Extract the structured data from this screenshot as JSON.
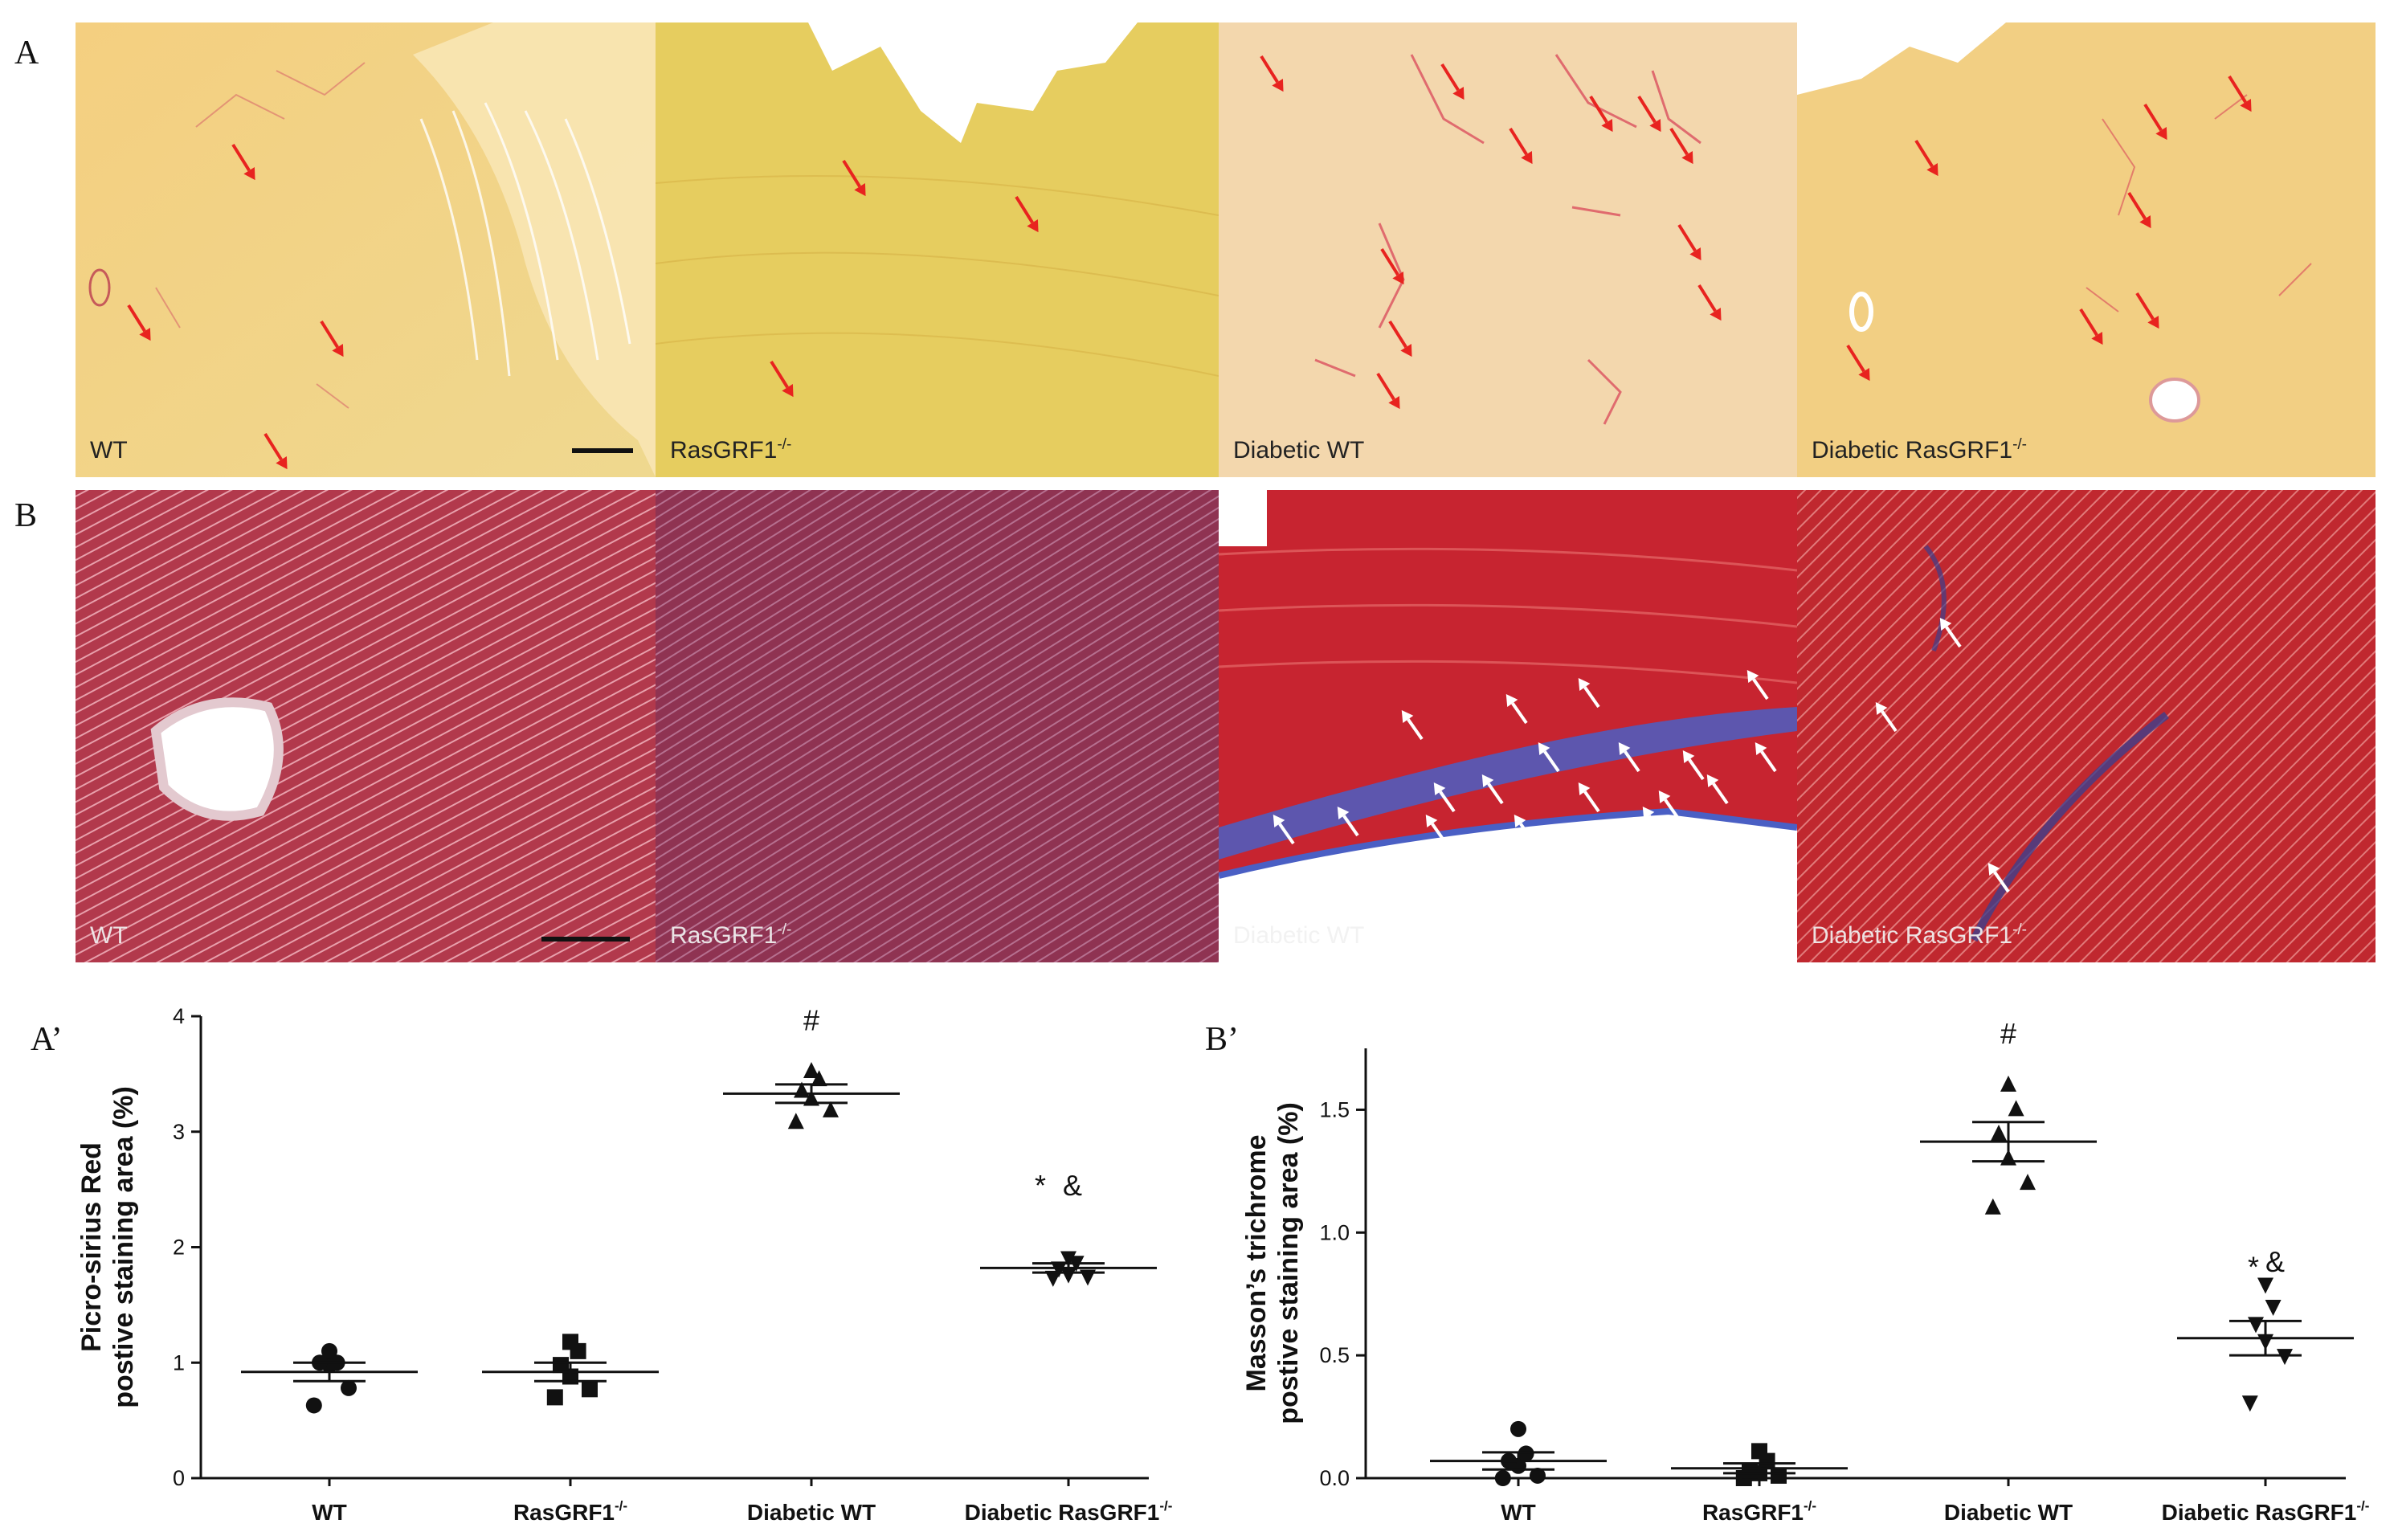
{
  "figure": {
    "panels": {
      "A": "A",
      "B": "B",
      "A_prime": "A’",
      "B_prime": "B’"
    }
  },
  "micrographs": {
    "row_a": [
      {
        "label": "WT",
        "sup": ""
      },
      {
        "label": "RasGRF1",
        "sup": "-/-"
      },
      {
        "label": "Diabetic WT",
        "sup": ""
      },
      {
        "label": "Diabetic RasGRF1",
        "sup": "-/-"
      }
    ],
    "row_b": [
      {
        "label": "WT",
        "sup": ""
      },
      {
        "label": "RasGRF1",
        "sup": "-/-"
      },
      {
        "label": "Diabetic WT",
        "sup": ""
      },
      {
        "label": "Diabetic RasGRF1",
        "sup": "-/-"
      }
    ],
    "colors": {
      "picro_bg": "#f2d27a",
      "picro_fiber": "#d9475a",
      "masson_bg": "#a8323f",
      "masson_collagen": "#4a5fc4",
      "arrow_red": "#e8231f",
      "arrow_white": "#ffffff"
    }
  },
  "chart_data": [
    {
      "type": "scatter",
      "panel": "A’",
      "ylabel_line1": "Picro-sirius Red",
      "ylabel_line2": "postive staining area (%)",
      "ylim": [
        0,
        4
      ],
      "yticks": [
        0,
        1,
        2,
        3,
        4
      ],
      "ytick_labels": [
        "0",
        "1",
        "2",
        "3",
        "4"
      ],
      "categories": [
        {
          "name": "WT",
          "sup": ""
        },
        {
          "name": "RasGRF1",
          "sup": "-/-"
        },
        {
          "name": "Diabetic WT",
          "sup": ""
        },
        {
          "name": "Diabetic RasGRF1",
          "sup": "-/-"
        }
      ],
      "markers": [
        "circle",
        "square",
        "triangle-up",
        "triangle-down"
      ],
      "points": [
        [
          0.63,
          0.78,
          0.98,
          1.0,
          1.0,
          1.1
        ],
        [
          0.7,
          0.77,
          0.88,
          0.98,
          1.1,
          1.18
        ],
        [
          3.08,
          3.18,
          3.28,
          3.35,
          3.45,
          3.52
        ],
        [
          1.74,
          1.75,
          1.77,
          1.82,
          1.87,
          1.91
        ]
      ],
      "mean": [
        0.92,
        0.92,
        3.33,
        1.82
      ],
      "sem": [
        0.08,
        0.08,
        0.08,
        0.04
      ],
      "annotations": [
        {
          "text": "#",
          "category": 2,
          "y": 3.88
        },
        {
          "text": "*",
          "category": 3,
          "y": 2.45,
          "dx": -0.35
        },
        {
          "text": "&",
          "category": 3,
          "y": 2.45,
          "dx": 0.05
        }
      ]
    },
    {
      "type": "scatter",
      "panel": "B’",
      "ylabel_line1": "Masson’s trichrome",
      "ylabel_line2": "postive staining area  (%)",
      "ylim": [
        0,
        1.75
      ],
      "yticks": [
        0,
        0.5,
        1.0,
        1.5
      ],
      "ytick_labels": [
        "0.0",
        "0.5",
        "1.0",
        "1.5"
      ],
      "categories": [
        {
          "name": "WT",
          "sup": ""
        },
        {
          "name": "RasGRF1",
          "sup": "-/-"
        },
        {
          "name": "Diabetic WT",
          "sup": ""
        },
        {
          "name": "Diabetic RasGRF1",
          "sup": "-/-"
        }
      ],
      "markers": [
        "circle",
        "square",
        "triangle-up",
        "triangle-down"
      ],
      "points": [
        [
          0.0,
          0.01,
          0.05,
          0.07,
          0.1,
          0.2
        ],
        [
          0.0,
          0.01,
          0.02,
          0.03,
          0.07,
          0.11
        ],
        [
          1.1,
          1.2,
          1.3,
          1.4,
          1.5,
          1.6
        ],
        [
          0.31,
          0.5,
          0.56,
          0.63,
          0.7,
          0.79
        ]
      ],
      "mean": [
        0.07,
        0.04,
        1.37,
        0.57
      ],
      "sem": [
        0.035,
        0.02,
        0.08,
        0.07
      ],
      "annotations": [
        {
          "text": "#",
          "category": 2,
          "y": 1.77
        },
        {
          "text": "*",
          "category": 3,
          "y": 0.82,
          "dx": -0.15
        },
        {
          "text": "&",
          "category": 3,
          "y": 0.84,
          "dx": 0.12
        }
      ]
    }
  ]
}
